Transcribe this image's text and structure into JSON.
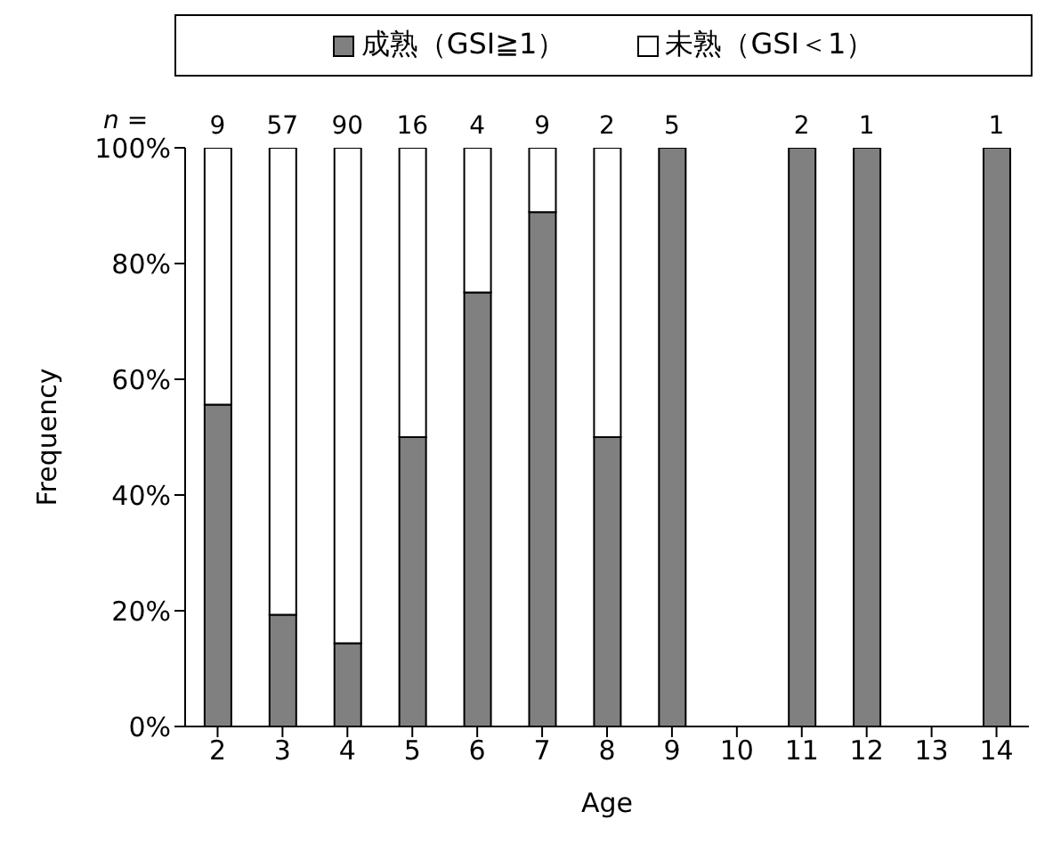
{
  "chart_data": {
    "type": "bar",
    "stacked": true,
    "xlabel": "Age",
    "ylabel": "Frequency",
    "categories": [
      "2",
      "3",
      "4",
      "5",
      "6",
      "7",
      "8",
      "9",
      "10",
      "11",
      "12",
      "13",
      "14"
    ],
    "series": [
      {
        "name": "成熟（GSI≧1）",
        "color": "#808080",
        "values": [
          55.6,
          19.3,
          14.4,
          50,
          75,
          88.9,
          50,
          100,
          null,
          100,
          100,
          null,
          100
        ]
      },
      {
        "name": "未熟（GSI＜1）",
        "color": "#ffffff",
        "values": [
          44.4,
          80.7,
          85.6,
          50,
          25,
          11.1,
          50,
          0,
          null,
          0,
          0,
          null,
          0
        ]
      }
    ],
    "ylim": [
      0,
      100
    ],
    "yticks": [
      {
        "value": 0,
        "label": "0%"
      },
      {
        "value": 20,
        "label": "20%"
      },
      {
        "value": 40,
        "label": "40%"
      },
      {
        "value": 60,
        "label": "60%"
      },
      {
        "value": 80,
        "label": "80%"
      },
      {
        "value": 100,
        "label": "100%"
      }
    ],
    "legend": "top",
    "grid": false,
    "annotations": [
      "n =",
      {
        "text": "9",
        "x": "2",
        "y": 100
      },
      {
        "text": "57",
        "x": "3",
        "y": 100
      },
      {
        "text": "90",
        "x": "4",
        "y": 100
      },
      {
        "text": "16",
        "x": "5",
        "y": 100
      },
      {
        "text": "4",
        "x": "6",
        "y": 100
      },
      {
        "text": "9",
        "x": "7",
        "y": 100
      },
      {
        "text": "2",
        "x": "8",
        "y": 100
      },
      {
        "text": "5",
        "x": "9",
        "y": 100
      },
      {
        "text": "2",
        "x": "11",
        "y": 100
      },
      {
        "text": "1",
        "x": "12",
        "y": 100
      },
      {
        "text": "1",
        "x": "14",
        "y": 100
      }
    ]
  }
}
